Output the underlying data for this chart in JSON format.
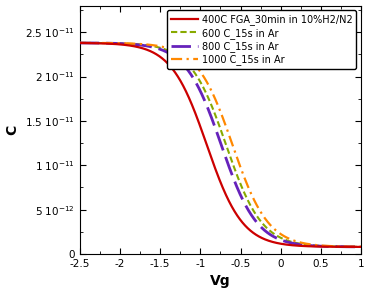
{
  "title": "",
  "xlabel": "Vg",
  "ylabel": "C",
  "xlim": [
    -2.5,
    1.0
  ],
  "ylim": [
    0,
    2.8e-11
  ],
  "series": [
    {
      "label": "400C FGA_30min in 10%H2/N2",
      "color": "#cc0000",
      "linestyle": "solid",
      "linewidth": 1.6,
      "shift": -0.92,
      "steepness": 4.5,
      "dash_style": "solid"
    },
    {
      "label": "600 C_15s in Ar",
      "color": "#88aa00",
      "linestyle": "dashed",
      "linewidth": 1.5,
      "shift": -0.68,
      "steepness": 4.5,
      "dash_style": "600dashed"
    },
    {
      "label": "800 C_15s in Ar",
      "color": "#6622bb",
      "linestyle": "dashed",
      "linewidth": 2.0,
      "shift": -0.74,
      "steepness": 4.5,
      "dash_style": "800dashed"
    },
    {
      "label": "1000 C_15s in Ar",
      "color": "#ff8800",
      "linestyle": "dashdot",
      "linewidth": 1.6,
      "shift": -0.6,
      "steepness": 4.5,
      "dash_style": "dashdot"
    }
  ],
  "C_max": 2.38e-11,
  "C_min": 8e-13,
  "background_color": "#ffffff",
  "legend_fontsize": 7.0,
  "axis_fontsize": 10,
  "tick_fontsize": 7.5
}
